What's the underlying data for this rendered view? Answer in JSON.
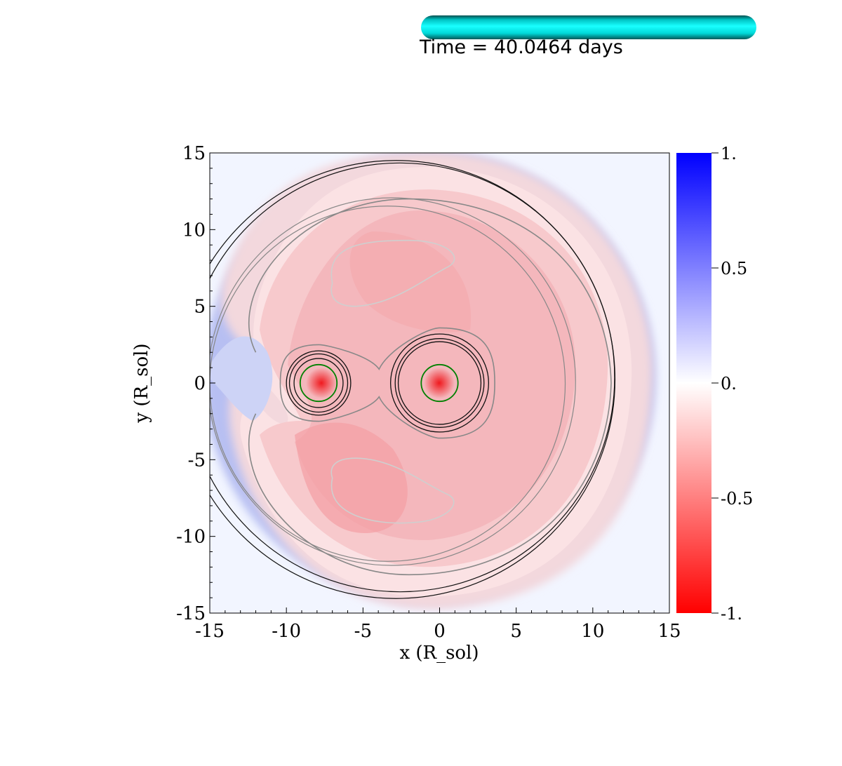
{
  "time_label": "Time = 40.0464 days",
  "time_progress": 1.0,
  "colors": {
    "progress_bar": "#00e8e8",
    "colormap_high": "#0000ff",
    "colormap_mid": "#ffffff",
    "colormap_low": "#ff0000",
    "contour_dark": "#111111",
    "contour_mid": "#888888",
    "contour_light": "#cfcfcf",
    "star_circle": "#008000"
  },
  "chart_data": {
    "type": "heatmap",
    "title": "",
    "xlabel": "x (R_sol)",
    "ylabel": "y (R_sol)",
    "xlim": [
      -15,
      15
    ],
    "ylim": [
      -15,
      15
    ],
    "x_ticks": [
      -15,
      -10,
      -5,
      0,
      5,
      10,
      15
    ],
    "y_ticks": [
      -15,
      -10,
      -5,
      0,
      5,
      10,
      15
    ],
    "x_tick_labels": [
      "-15",
      "-10",
      "-5",
      "0",
      "5",
      "10",
      "15"
    ],
    "y_tick_labels": [
      "-15",
      "-10",
      "-5",
      "0",
      "5",
      "10",
      "15"
    ],
    "colorbar": {
      "range": [
        -1,
        1
      ],
      "ticks": [
        1,
        0.5,
        0,
        -0.5,
        -1
      ],
      "tick_labels": [
        "1.",
        "0.5",
        "0.",
        "-0.5",
        "-1."
      ]
    },
    "stars": [
      {
        "x": -7.9,
        "y": 0.0,
        "radius": 1.2
      },
      {
        "x": 0.0,
        "y": 0.0,
        "radius": 1.2
      }
    ],
    "contours": {
      "outer_circle_radii": [
        14.0,
        14.3,
        12.0,
        11.6
      ],
      "star1_rings": [
        1.6,
        1.9,
        2.1
      ],
      "star2_rings": [
        2.7,
        2.9,
        3.2
      ],
      "grid": false
    }
  }
}
